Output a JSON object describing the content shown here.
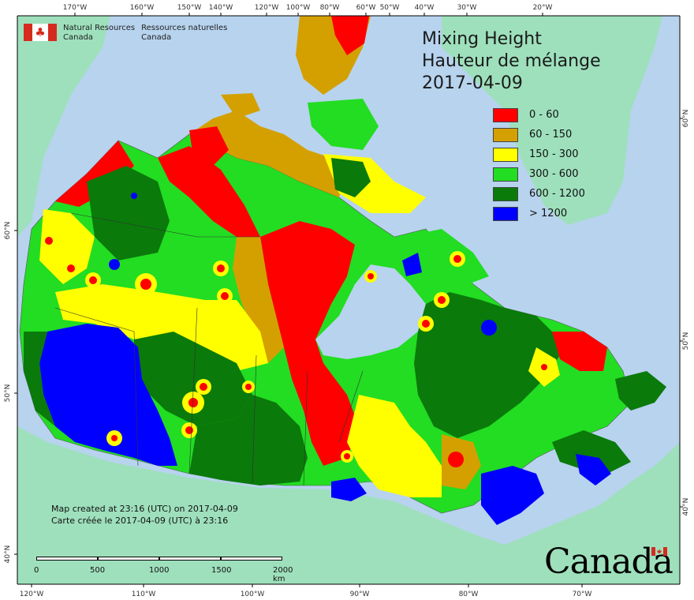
{
  "department": {
    "en": "Natural Resources\nCanada",
    "en_line1": "Natural Resources",
    "en_line2": "Canada",
    "fr_line1": "Ressources naturelles",
    "fr_line2": "Canada"
  },
  "title": {
    "en": "Mixing Height",
    "fr": "Hauteur de mélange",
    "date": "2017-04-09"
  },
  "legend": [
    {
      "label": "0 - 60",
      "color": "#ff0000"
    },
    {
      "label": "60 - 150",
      "color": "#d4a000"
    },
    {
      "label": "150 - 300",
      "color": "#ffff00"
    },
    {
      "label": "300 - 600",
      "color": "#22dd22"
    },
    {
      "label": "600 - 1200",
      "color": "#0a7a0a"
    },
    {
      "label": "> 1200",
      "color": "#0000ff"
    }
  ],
  "credits": {
    "line1": "Map created at 23:16 (UTC) on 2017-04-09",
    "line2": "Carte créée le 2017-04-09 (UTC) à 23:16"
  },
  "scale": {
    "labels": [
      "0",
      "500",
      "1000",
      "1500",
      "2000  km"
    ]
  },
  "wordmark": "Canada",
  "top_ticks": [
    "170°W",
    "160°W",
    "150°W",
    "140°W",
    "120°W",
    "100°W",
    "80°W",
    "60°W",
    "50°W",
    "40°W",
    "30°W",
    "20°W"
  ],
  "bottom_ticks": [
    "120°W",
    "110°W",
    "100°W",
    "90°W",
    "80°W",
    "70°W"
  ],
  "left_ticks": [
    "60°N",
    "50°N",
    "40°N"
  ],
  "right_ticks": [
    "60°N",
    "50°N",
    "40°N"
  ],
  "colors": {
    "ocean": "#b7d3ee",
    "land_outside": "#9ee0bc",
    "low": "#ff0000",
    "low_mid": "#d4a000",
    "mid": "#ffff00",
    "mid_high": "#22dd22",
    "high": "#0a7a0a",
    "very_high": "#0000ff"
  }
}
